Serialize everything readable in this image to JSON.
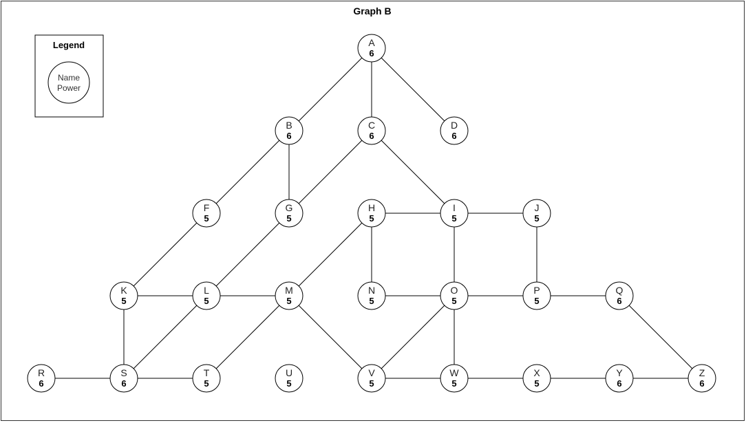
{
  "title": "Graph B",
  "legend": {
    "title": "Legend",
    "name_label": "Name",
    "power_label": "Power"
  },
  "colors": {
    "stroke": "#000000",
    "background": "#ffffff"
  },
  "nodes": [
    {
      "name": "A",
      "power": "6"
    },
    {
      "name": "B",
      "power": "6"
    },
    {
      "name": "C",
      "power": "6"
    },
    {
      "name": "D",
      "power": "6"
    },
    {
      "name": "F",
      "power": "5"
    },
    {
      "name": "G",
      "power": "5"
    },
    {
      "name": "H",
      "power": "5"
    },
    {
      "name": "I",
      "power": "5"
    },
    {
      "name": "J",
      "power": "5"
    },
    {
      "name": "K",
      "power": "5"
    },
    {
      "name": "L",
      "power": "5"
    },
    {
      "name": "M",
      "power": "5"
    },
    {
      "name": "N",
      "power": "5"
    },
    {
      "name": "O",
      "power": "5"
    },
    {
      "name": "P",
      "power": "5"
    },
    {
      "name": "Q",
      "power": "6"
    },
    {
      "name": "R",
      "power": "6"
    },
    {
      "name": "S",
      "power": "6"
    },
    {
      "name": "T",
      "power": "5"
    },
    {
      "name": "U",
      "power": "5"
    },
    {
      "name": "V",
      "power": "5"
    },
    {
      "name": "W",
      "power": "5"
    },
    {
      "name": "X",
      "power": "5"
    },
    {
      "name": "Y",
      "power": "6"
    },
    {
      "name": "Z",
      "power": "6"
    }
  ],
  "edges": [
    [
      "A",
      "B"
    ],
    [
      "A",
      "C"
    ],
    [
      "A",
      "D"
    ],
    [
      "B",
      "F"
    ],
    [
      "B",
      "G"
    ],
    [
      "C",
      "G"
    ],
    [
      "C",
      "I"
    ],
    [
      "F",
      "K"
    ],
    [
      "G",
      "L"
    ],
    [
      "H",
      "I"
    ],
    [
      "I",
      "J"
    ],
    [
      "H",
      "M"
    ],
    [
      "H",
      "N"
    ],
    [
      "I",
      "O"
    ],
    [
      "J",
      "P"
    ],
    [
      "K",
      "L"
    ],
    [
      "L",
      "M"
    ],
    [
      "K",
      "S"
    ],
    [
      "L",
      "S"
    ],
    [
      "M",
      "T"
    ],
    [
      "M",
      "V"
    ],
    [
      "N",
      "O"
    ],
    [
      "O",
      "P"
    ],
    [
      "P",
      "Q"
    ],
    [
      "O",
      "V"
    ],
    [
      "O",
      "W"
    ],
    [
      "R",
      "S"
    ],
    [
      "S",
      "T"
    ],
    [
      "V",
      "W"
    ],
    [
      "W",
      "X"
    ],
    [
      "X",
      "Y"
    ],
    [
      "Y",
      "Z"
    ],
    [
      "Q",
      "Z"
    ]
  ]
}
